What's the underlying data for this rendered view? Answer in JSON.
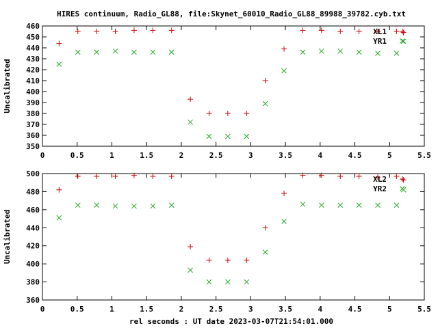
{
  "chart_data": {
    "type": "scatter",
    "title": "HIRES continuum, Radio_GL88, file:Skynet_60010_Radio_GL88_89988_39782.cyb.txt",
    "xlabel": "rel seconds : UT date 2023-03-07T21:54:01.000",
    "grid": false,
    "legend_position": "top-right",
    "panels": [
      {
        "ylabel": "Uncalibrated",
        "xlim": [
          0,
          5.5
        ],
        "ylim": [
          350,
          460
        ],
        "xticks": [
          "0",
          "0.5",
          "1",
          "1.5",
          "2",
          "2.5",
          "3",
          "3.5",
          "4",
          "4.5",
          "5",
          "5.5"
        ],
        "yticks": [
          "350",
          "360",
          "370",
          "380",
          "390",
          "400",
          "410",
          "420",
          "430",
          "440",
          "450",
          "460"
        ],
        "series": [
          {
            "name": "XL1",
            "marker": "+",
            "color": "#cc0000",
            "x": [
              0.24,
              0.51,
              0.78,
              1.05,
              1.32,
              1.59,
              1.86,
              2.13,
              2.4,
              2.67,
              2.94,
              3.21,
              3.48,
              3.75,
              4.02,
              4.29,
              4.56,
              4.83,
              5.1,
              5.2
            ],
            "y": [
              444,
              455,
              455,
              455,
              456,
              456,
              456,
              393,
              380,
              380,
              380,
              410,
              439,
              456,
              456,
              455,
              455,
              455,
              455,
              454
            ]
          },
          {
            "name": "YR1",
            "marker": "x",
            "color": "#22aa22",
            "x": [
              0.24,
              0.51,
              0.78,
              1.05,
              1.32,
              1.59,
              1.86,
              2.13,
              2.4,
              2.67,
              2.94,
              3.21,
              3.48,
              3.75,
              4.02,
              4.29,
              4.56,
              4.83,
              5.1,
              5.2
            ],
            "y": [
              425,
              436,
              436,
              437,
              436,
              436,
              436,
              372,
              359,
              359,
              359,
              389,
              419,
              436,
              437,
              437,
              436,
              435,
              435,
              446
            ]
          }
        ]
      },
      {
        "ylabel": "Uncalibrated",
        "xlim": [
          0,
          5.5
        ],
        "ylim": [
          360,
          500
        ],
        "xticks": [
          "0",
          "0.5",
          "1",
          "1.5",
          "2",
          "2.5",
          "3",
          "3.5",
          "4",
          "4.5",
          "5",
          "5.5"
        ],
        "yticks": [
          "360",
          "380",
          "400",
          "420",
          "440",
          "460",
          "480",
          "500"
        ],
        "series": [
          {
            "name": "XL2",
            "marker": "+",
            "color": "#cc0000",
            "x": [
              0.24,
              0.51,
              0.78,
              1.05,
              1.32,
              1.59,
              1.86,
              2.13,
              2.4,
              2.67,
              2.94,
              3.21,
              3.48,
              3.75,
              4.02,
              4.29,
              4.56,
              4.83,
              5.1,
              5.2
            ],
            "y": [
              482,
              497,
              497,
              497,
              498,
              497,
              497,
              419,
              404,
              404,
              404,
              440,
              478,
              498,
              498,
              497,
              497,
              496,
              497,
              493
            ]
          },
          {
            "name": "YR2",
            "marker": "x",
            "color": "#22aa22",
            "x": [
              0.24,
              0.51,
              0.78,
              1.05,
              1.32,
              1.59,
              1.86,
              2.13,
              2.4,
              2.67,
              2.94,
              3.21,
              3.48,
              3.75,
              4.02,
              4.29,
              4.56,
              4.83,
              5.1,
              5.2
            ],
            "y": [
              451,
              465,
              465,
              464,
              464,
              464,
              465,
              393,
              380,
              380,
              380,
              413,
              447,
              466,
              465,
              465,
              465,
              465,
              465,
              482
            ]
          }
        ]
      }
    ]
  }
}
